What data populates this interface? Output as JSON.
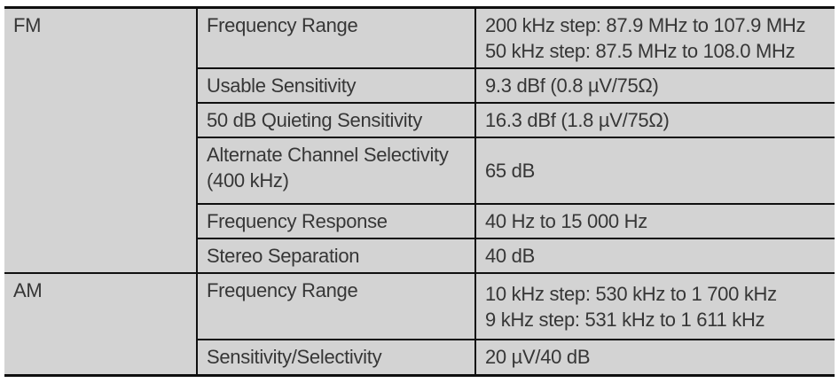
{
  "table": {
    "name": "tuner-specifications",
    "colors": {
      "cell_background": "#d3d3d3",
      "border": "#0f0f0f",
      "text": "#363636",
      "page_background": "#ffffff"
    },
    "sections": [
      {
        "band": "FM",
        "rows": [
          {
            "label": "Frequency Range",
            "value_lines": [
              "200 kHz step: 87.9 MHz to 107.9 MHz",
              "50 kHz step: 87.5 MHz to 108.0 MHz"
            ]
          },
          {
            "label": "Usable Sensitivity",
            "value_lines": [
              "9.3 dBf (0.8 µV/75Ω)"
            ]
          },
          {
            "label": "50 dB Quieting Sensitivity",
            "value_lines": [
              "16.3 dBf (1.8 µV/75Ω)"
            ]
          },
          {
            "label": "Alternate Channel Selectivity (400 kHz)",
            "value_lines": [
              "65 dB"
            ]
          },
          {
            "label": "Frequency Response",
            "value_lines": [
              "40 Hz to 15 000 Hz"
            ]
          },
          {
            "label": "Stereo Separation",
            "value_lines": [
              "40 dB"
            ]
          }
        ]
      },
      {
        "band": "AM",
        "rows": [
          {
            "label": "Frequency Range",
            "value_lines": [
              "10 kHz step: 530 kHz to 1 700 kHz",
              "9 kHz step: 531 kHz to 1 611 kHz"
            ]
          },
          {
            "label": "Sensitivity/Selectivity",
            "value_lines": [
              "20 µV/40 dB"
            ]
          }
        ]
      }
    ]
  }
}
